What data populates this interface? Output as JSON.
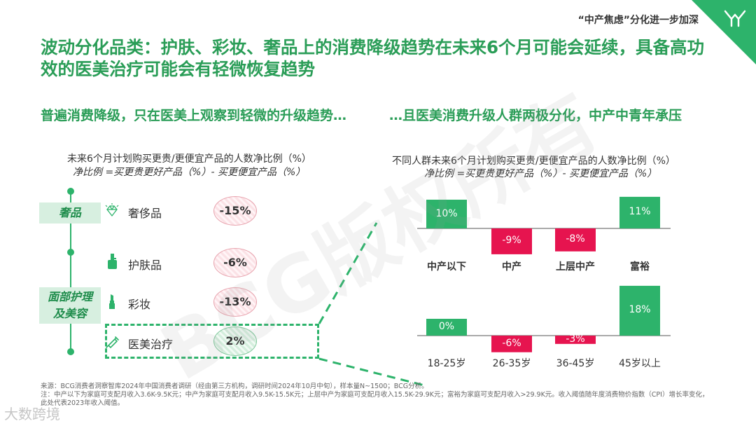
{
  "header": {
    "section_label": "“中产焦虑”分化进一步加深",
    "title": "波动分化品类：护肤、彩妆、奢品上的消费降级趋势在未来6个月可能会延续，具备高功效的医美治疗可能会有轻微恢复趋势",
    "accent_color": "#2db36b"
  },
  "left": {
    "subtitle": "普遍消费降级，只在医美上观察到轻微的升级趋势…",
    "caption": "未来6个月计划购买更贵/更便宜产品的人数净比例（%）",
    "caption_italic": "净比例 =买更贵更好产品（%）- 买更便宜产品（%）",
    "groups": [
      {
        "label": "奢品"
      },
      {
        "label": "面部护理及美容"
      }
    ],
    "categories": [
      {
        "label": "奢侈品",
        "value": "-15%",
        "icon": "diamond-icon"
      },
      {
        "label": "护肤品",
        "value": "-6%",
        "icon": "bottle-icon"
      },
      {
        "label": "彩妆",
        "value": "-13%",
        "icon": "lipstick-icon"
      },
      {
        "label": "医美治疗",
        "value": "2%",
        "icon": "syringe-icon"
      }
    ]
  },
  "right": {
    "subtitle": "…且医美消费升级人群两极分化，中产中青年承压",
    "caption": "不同人群未来6个月计划购买更贵/更便宜产品的人数净比例（%）",
    "caption_italic": "净比例 =买更贵更好产品（%）- 买更便宜产品（%）"
  },
  "chart_data": [
    {
      "type": "bar",
      "categories": [
        "中产以下",
        "中产",
        "上层中产",
        "富裕"
      ],
      "values": [
        10,
        -9,
        -8,
        11
      ],
      "labels": [
        "10%",
        "-9%",
        "-8%",
        "11%"
      ],
      "positive_color": "#2db36b",
      "negative_color": "#e6144f"
    },
    {
      "type": "bar",
      "categories": [
        "18-25岁",
        "26-35岁",
        "36-45岁",
        "45岁以上"
      ],
      "values": [
        0,
        -6,
        -3,
        18
      ],
      "labels": [
        "0%",
        "-6%",
        "-3%",
        "18%"
      ],
      "positive_color": "#2db36b",
      "negative_color": "#e6144f"
    }
  ],
  "footnote": {
    "source": "来源：BCG消费者洞察智库2024年中国消费者调研（经由第三方机构，调研时间2024年10月中旬），样本量N~1500；BCG分析。",
    "note": "注：中产以下为家庭可支配月收入3.6K-9.5K元；中产为家庭可支配月收入9.5K-15.5K元；上层中产为家庭可支配月收入15.5K-29.9K元；富裕为家庭可支配月收入>29.9K元。收入阈值随年度消费物价指数（CPI）增长率变化，此处代表2023年收入阈值。"
  },
  "watermark": "BCG版权所有",
  "logo": "大数跨境"
}
